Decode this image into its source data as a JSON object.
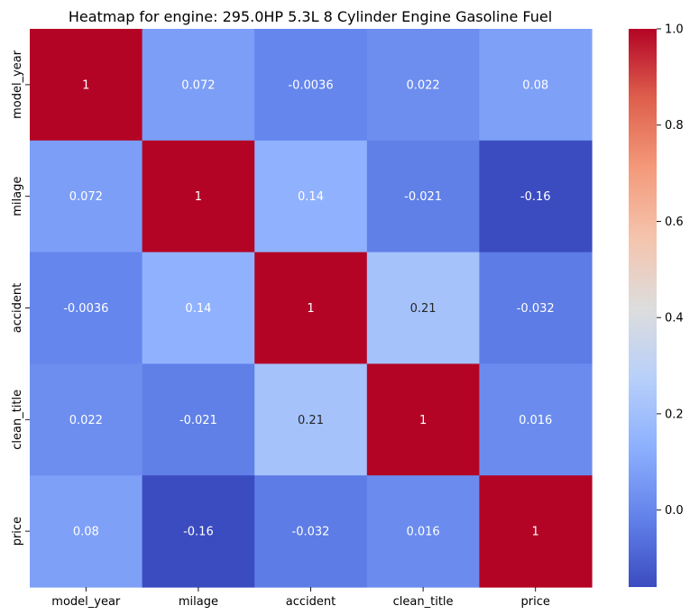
{
  "chart_data": {
    "type": "heatmap",
    "title": "Heatmap for engine: 295.0HP 5.3L 8 Cylinder Engine Gasoline Fuel",
    "xlabel": "",
    "ylabel": "",
    "x_categories": [
      "model_year",
      "milage",
      "accident",
      "clean_title",
      "price"
    ],
    "y_categories": [
      "model_year",
      "milage",
      "accident",
      "clean_title",
      "price"
    ],
    "values": [
      [
        1,
        0.072,
        -0.0036,
        0.022,
        0.08
      ],
      [
        0.072,
        1,
        0.14,
        -0.021,
        -0.16
      ],
      [
        -0.0036,
        0.14,
        1,
        0.21,
        -0.032
      ],
      [
        0.022,
        -0.021,
        0.21,
        1,
        0.016
      ],
      [
        0.08,
        -0.16,
        -0.032,
        0.016,
        1
      ]
    ],
    "labels": [
      [
        "1",
        "0.072",
        "-0.0036",
        "0.022",
        "0.08"
      ],
      [
        "0.072",
        "1",
        "0.14",
        "-0.021",
        "-0.16"
      ],
      [
        "-0.0036",
        "0.14",
        "1",
        "0.21",
        "-0.032"
      ],
      [
        "0.022",
        "-0.021",
        "0.21",
        "1",
        "0.016"
      ],
      [
        "0.08",
        "-0.16",
        "-0.032",
        "0.016",
        "1"
      ]
    ],
    "colormap": "coolwarm",
    "vmin": -0.16,
    "vmax": 1.0,
    "colorbar": {
      "ticks": [
        0.0,
        0.2,
        0.4,
        0.6,
        0.8,
        1.0
      ],
      "tick_labels": [
        "0.0",
        "0.2",
        "0.4",
        "0.6",
        "0.8",
        "1.0"
      ]
    },
    "grid": false,
    "legend": "none"
  }
}
